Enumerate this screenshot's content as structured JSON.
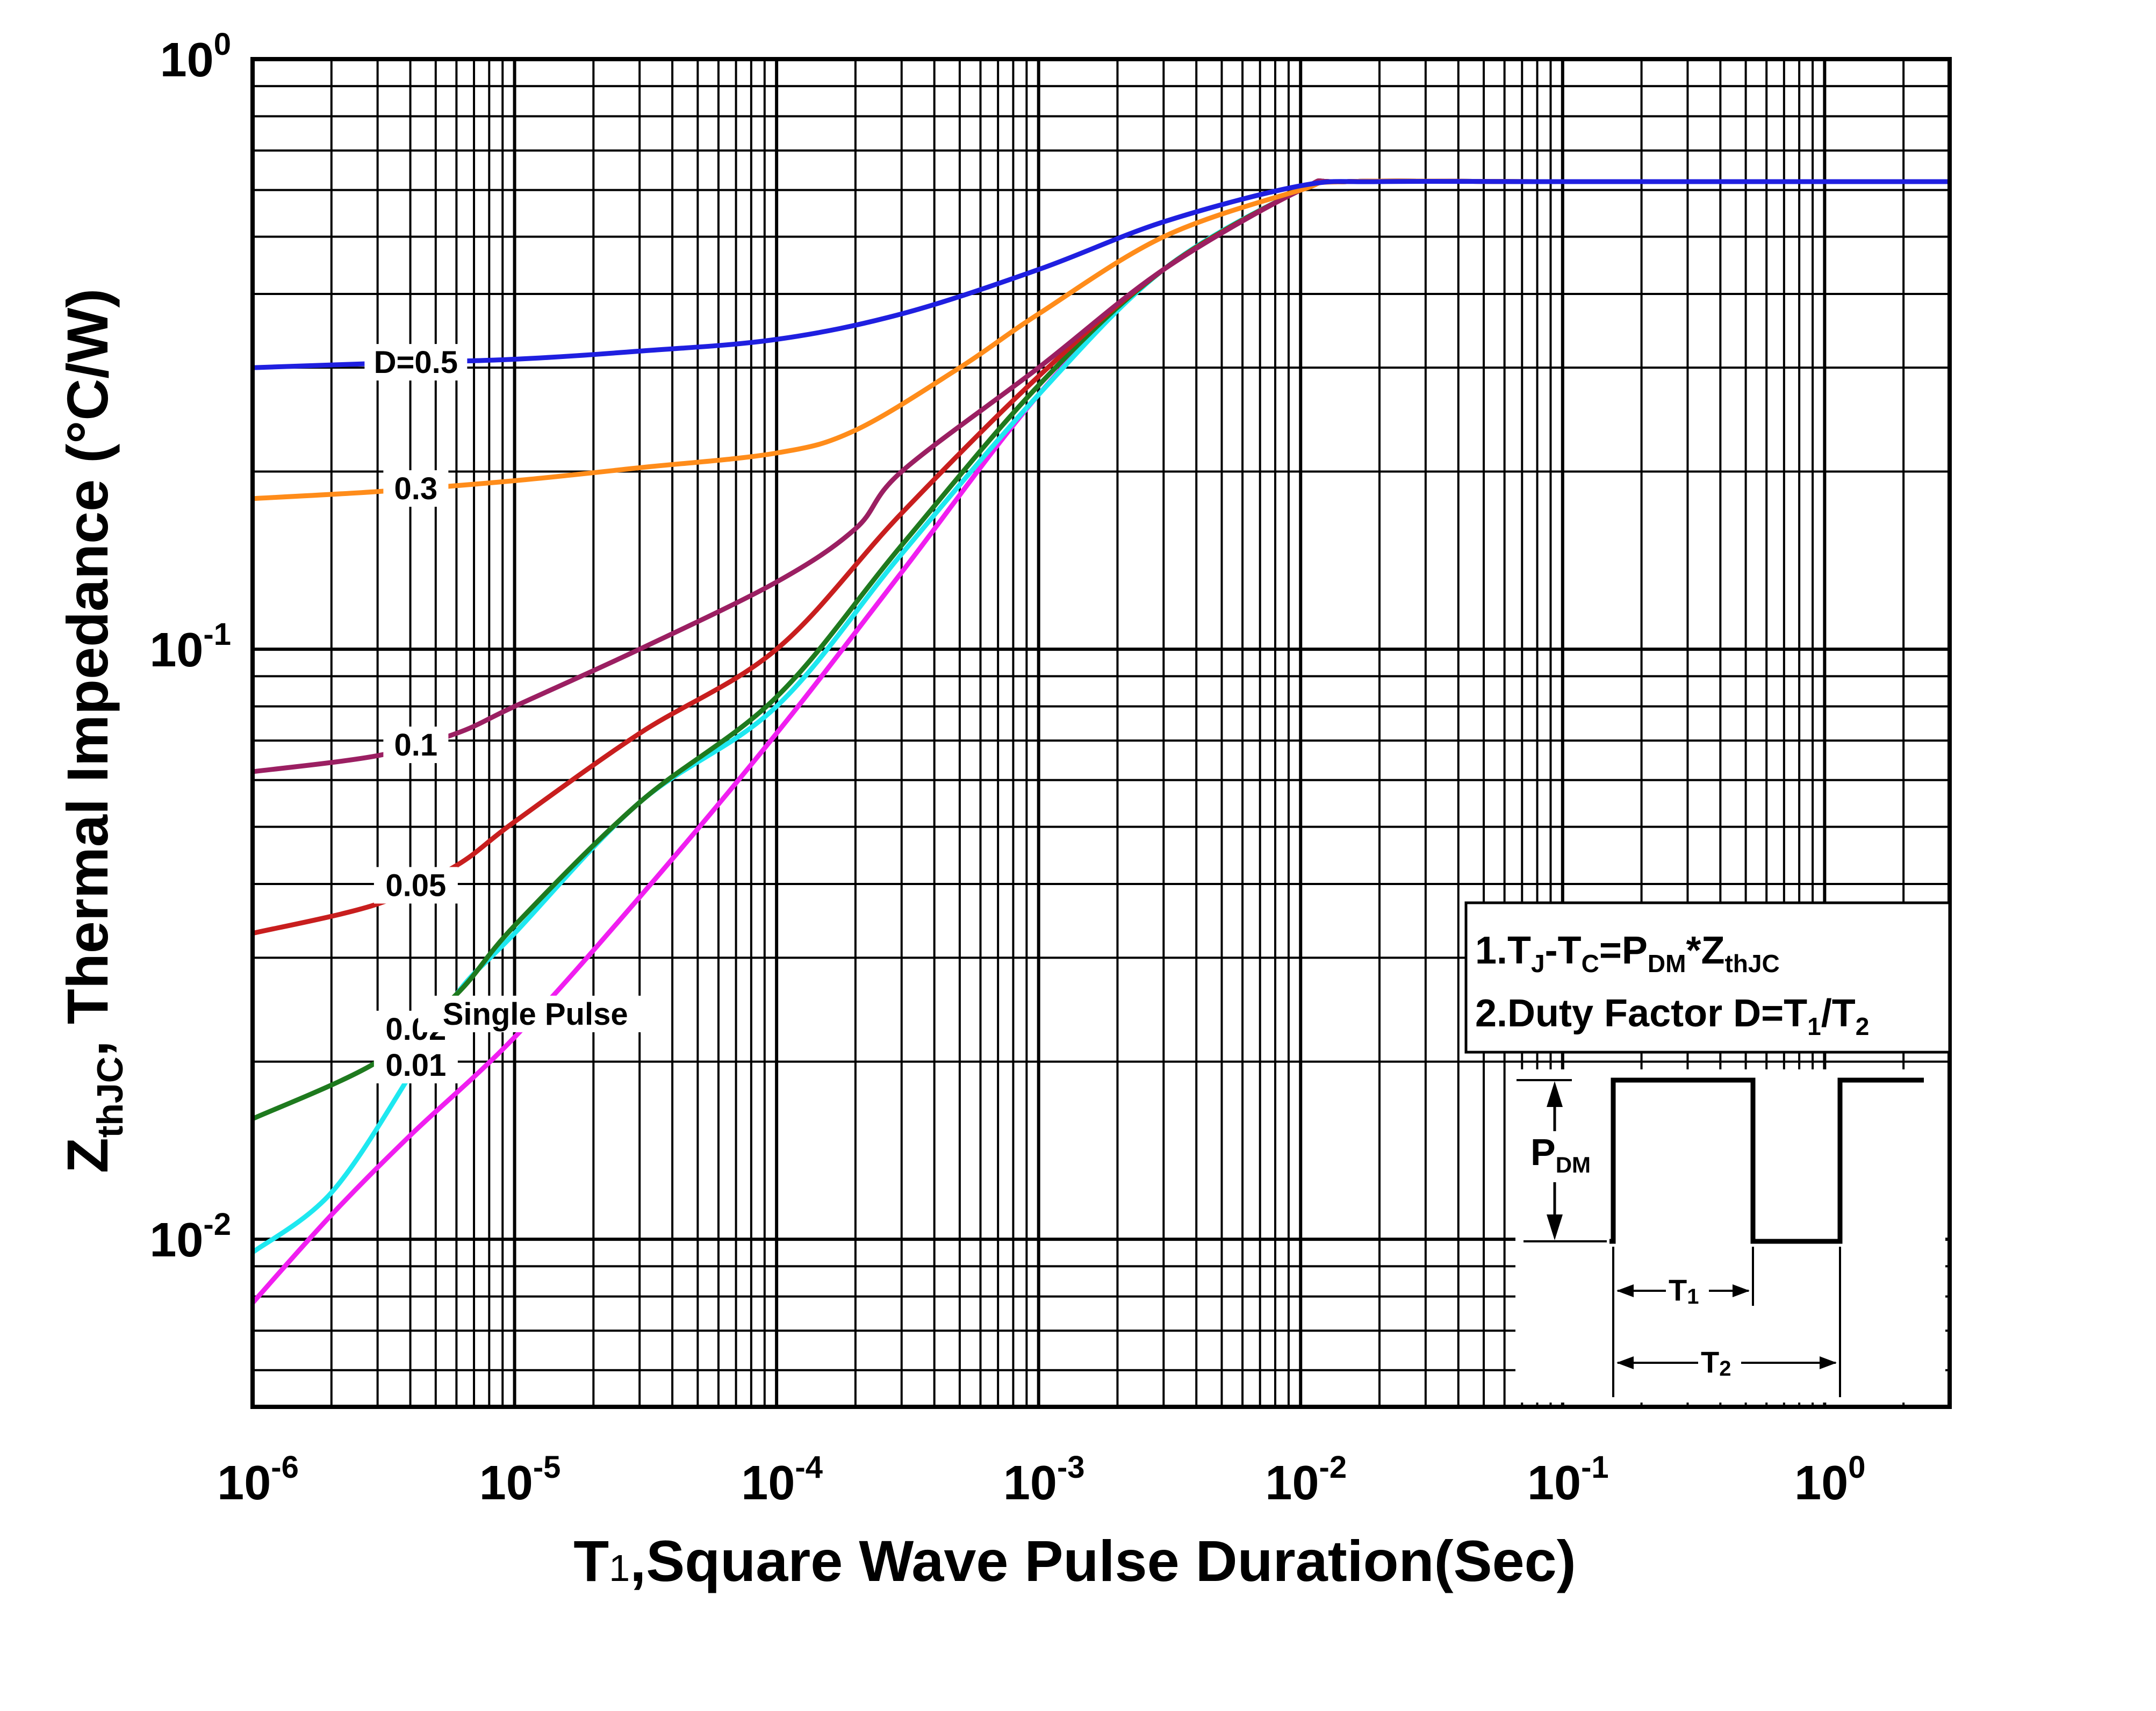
{
  "chart_data": {
    "type": "line",
    "title": "",
    "xlabel": "T1,Square Wave Pulse Duration(Sec)",
    "ylabel": "ZthJC, Thermal Impedance (°C/W)",
    "xscale": "log",
    "yscale": "log",
    "xlim": [
      1e-06,
      3
    ],
    "ylim": [
      0.0052,
      1.0
    ],
    "grid": true,
    "x_ticks": [
      {
        "base": "10",
        "exp": "-6",
        "value": 1e-06
      },
      {
        "base": "10",
        "exp": "-5",
        "value": 1e-05
      },
      {
        "base": "10",
        "exp": "-4",
        "value": 0.0001
      },
      {
        "base": "10",
        "exp": "-3",
        "value": 0.001
      },
      {
        "base": "10",
        "exp": "-2",
        "value": 0.01
      },
      {
        "base": "10",
        "exp": "-1",
        "value": 0.1
      },
      {
        "base": "10",
        "exp": "0",
        "value": 1
      }
    ],
    "y_ticks": [
      {
        "base": "10",
        "exp": "0",
        "value": 1
      },
      {
        "base": "10",
        "exp": "-1",
        "value": 0.1
      },
      {
        "base": "10",
        "exp": "-2",
        "value": 0.01
      }
    ],
    "series": [
      {
        "name": "D=0.5",
        "label": "D=0.5",
        "color": "#1f1fe0",
        "label_x": 4.2e-06,
        "x": [
          1e-06,
          3e-06,
          1e-05,
          3e-05,
          0.0001,
          0.0003,
          0.001,
          0.003,
          0.01,
          0.02,
          0.1,
          3
        ],
        "y": [
          0.3,
          0.305,
          0.31,
          0.32,
          0.335,
          0.37,
          0.44,
          0.53,
          0.61,
          0.62,
          0.62,
          0.62
        ]
      },
      {
        "name": "0.3",
        "label": "0.3",
        "color": "#ff8c1a",
        "label_x": 4.2e-06,
        "x": [
          1e-06,
          3e-06,
          1e-05,
          3e-05,
          0.0001,
          0.0002,
          0.0005,
          0.001,
          0.003,
          0.01,
          0.015,
          0.1,
          3
        ],
        "y": [
          0.18,
          0.185,
          0.193,
          0.203,
          0.215,
          0.235,
          0.3,
          0.37,
          0.5,
          0.6,
          0.62,
          0.62,
          0.62
        ]
      },
      {
        "name": "0.1",
        "label": "0.1",
        "color": "#9b1f62",
        "label_x": 4.2e-06,
        "x": [
          1e-06,
          3e-06,
          6e-06,
          1e-05,
          3e-05,
          0.0001,
          0.0002,
          0.0003,
          0.001,
          0.003,
          0.01,
          0.015,
          0.1,
          3
        ],
        "y": [
          0.062,
          0.066,
          0.072,
          0.08,
          0.1,
          0.13,
          0.16,
          0.2,
          0.3,
          0.44,
          0.6,
          0.62,
          0.62,
          0.62
        ]
      },
      {
        "name": "0.05",
        "label": "0.05",
        "color": "#c81e1e",
        "label_x": 4.2e-06,
        "x": [
          1e-06,
          3e-06,
          6e-06,
          1e-05,
          3e-05,
          0.0001,
          0.0003,
          0.001,
          0.003,
          0.01,
          0.015,
          0.1,
          3
        ],
        "y": [
          0.033,
          0.037,
          0.043,
          0.051,
          0.072,
          0.1,
          0.17,
          0.29,
          0.44,
          0.6,
          0.62,
          0.62,
          0.62
        ]
      },
      {
        "name": "0.02",
        "label": "0.02",
        "color": "#1e7a1e",
        "label_x": 4.2e-06,
        "x": [
          1e-06,
          3e-06,
          6e-06,
          1e-05,
          3e-05,
          0.0001,
          0.0003,
          0.001,
          0.003,
          0.01,
          0.015,
          0.1,
          3
        ],
        "y": [
          0.016,
          0.02,
          0.026,
          0.034,
          0.055,
          0.083,
          0.15,
          0.28,
          0.44,
          0.6,
          0.62,
          0.62,
          0.62
        ]
      },
      {
        "name": "0.01",
        "label": "0.01",
        "color": "#1ee8f0",
        "label_x": 4.2e-06,
        "x": [
          1e-06,
          2e-06,
          4e-06,
          6e-06,
          1e-05,
          3e-05,
          0.0001,
          0.0003,
          0.001,
          0.003,
          0.01,
          0.015,
          0.1,
          3
        ],
        "y": [
          0.0095,
          0.012,
          0.019,
          0.026,
          0.033,
          0.055,
          0.08,
          0.145,
          0.27,
          0.44,
          0.6,
          0.62,
          0.62,
          0.62
        ]
      },
      {
        "name": "Single Pulse",
        "label": "Single Pulse",
        "color": "#f01ef0",
        "label_x": 1.2e-05,
        "x": [
          1e-06,
          2e-06,
          4e-06,
          1e-05,
          3e-05,
          0.0001,
          0.0003,
          0.001,
          0.003,
          0.01,
          0.015,
          0.1,
          3
        ],
        "y": [
          0.0078,
          0.011,
          0.015,
          0.022,
          0.038,
          0.072,
          0.135,
          0.27,
          0.44,
          0.6,
          0.62,
          0.62,
          0.62
        ]
      }
    ]
  },
  "notes": {
    "line1": {
      "a": "1.T",
      "b": "J",
      "c": "-T",
      "d": "C",
      "e": "=P",
      "f": "DM",
      "g": "*Z",
      "h": "thJC"
    },
    "line2": {
      "a": "2.Duty Factor D=T",
      "b": "1",
      "c": "/T",
      "d": "2"
    }
  },
  "waveform": {
    "pdm_label": "P",
    "pdm_sub": "DM",
    "t1_label": "T",
    "t1_sub": "1",
    "t2_label": "T",
    "t2_sub": "2"
  },
  "axis_titles": {
    "x": {
      "a": "T",
      "b": "1",
      "c": ",Square Wave Pulse Duration(Sec)"
    },
    "y": {
      "a": "Z",
      "b": "thJC",
      "c": ", Thermal  Impedance (°C/W)"
    }
  }
}
